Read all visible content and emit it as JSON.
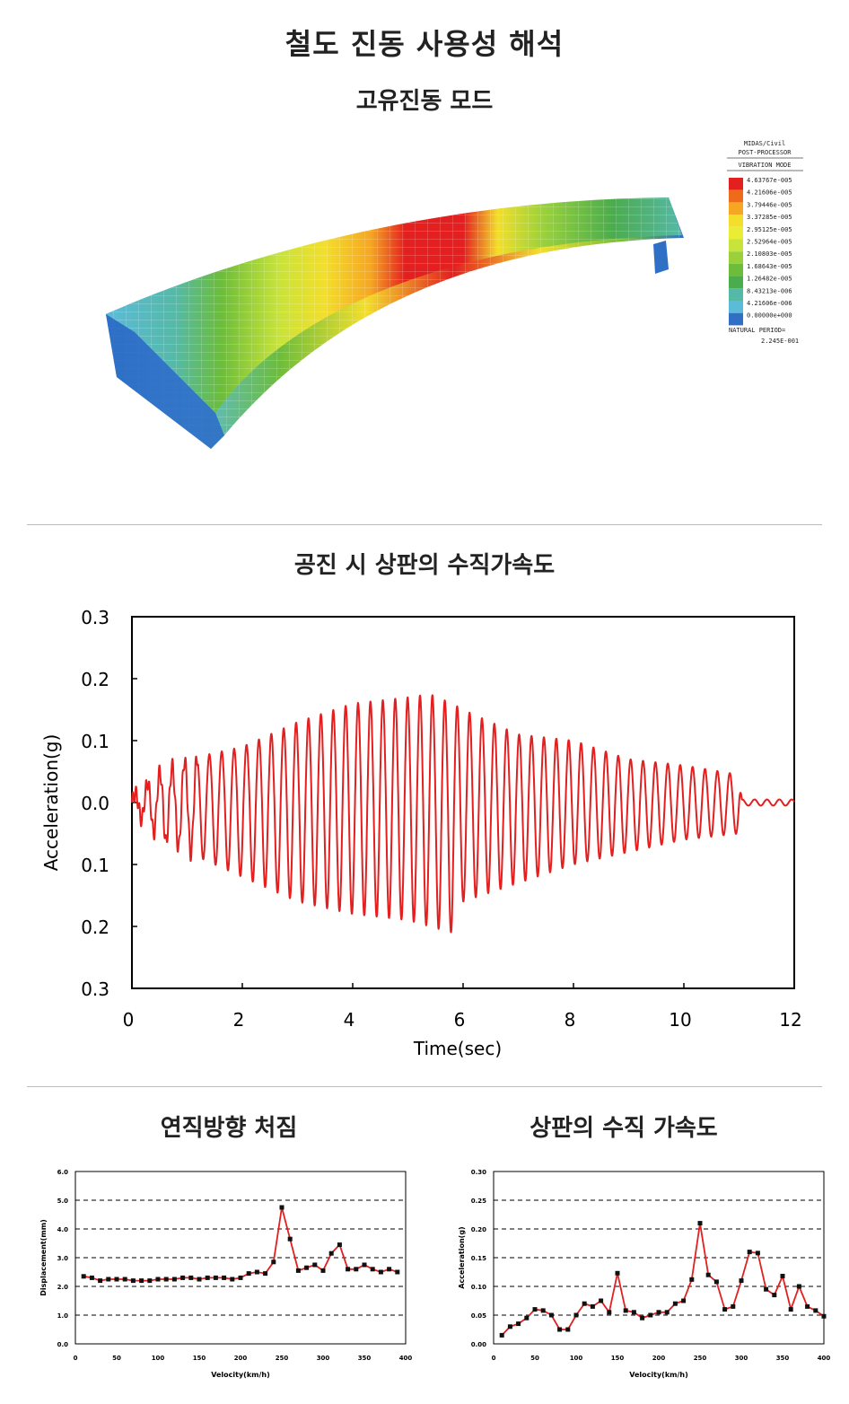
{
  "header": {
    "main_title": "철도 진동 사용성 해석",
    "mode_title": "고유진동 모드",
    "accel_title": "공진 시 상판의 수직가속도",
    "deflection_title": "연직방향 처짐",
    "deck_accel_title": "상판의 수직 가속도"
  },
  "legend": {
    "program": "MIDAS/Civil",
    "processor": "POST-PROCESSOR",
    "mode": "VIBRATION MODE",
    "values": [
      "4.63767e-005",
      "4.21606e-005",
      "3.79446e-005",
      "3.37285e-005",
      "2.95125e-005",
      "2.52964e-005",
      "2.10803e-005",
      "1.68643e-005",
      "1.26482e-005",
      "8.43213e-006",
      "4.21606e-006",
      "0.00000e+000"
    ],
    "colors": [
      "#e31f1f",
      "#ef6a1a",
      "#f5a623",
      "#f3de2c",
      "#e9ee34",
      "#c8e33a",
      "#9ad13b",
      "#6cbd3a",
      "#4aac4d",
      "#55b9a8",
      "#5bbbd9",
      "#2f6fc6"
    ],
    "period_label": "NATURAL PERIOD=",
    "period_value": "2.245E-001"
  },
  "chart_data": [
    {
      "type": "line",
      "title": "공진 시 상판의 수직가속도",
      "xlabel": "Time(sec)",
      "ylabel": "Acceleration(g)",
      "xlim": [
        0,
        12
      ],
      "ylim": [
        -0.3,
        0.3
      ],
      "xticks": [
        "0",
        "2",
        "4",
        "6",
        "8",
        "10",
        "12"
      ],
      "yticks": [
        "0.3",
        "0.2",
        "0.1",
        "0.0",
        "0.1",
        "0.2",
        "0.3"
      ],
      "color": "#e31f1f",
      "envelope": {
        "t": [
          0,
          0.5,
          1,
          2,
          3,
          4,
          5,
          5.4,
          5.8,
          6,
          7,
          8,
          9,
          10,
          11,
          11.05,
          12
        ],
        "amp_upper": [
          0.01,
          0.05,
          0.07,
          0.09,
          0.13,
          0.16,
          0.17,
          0.175,
          0.16,
          0.15,
          0.11,
          0.1,
          0.07,
          0.06,
          0.045,
          0.005,
          0.005
        ],
        "amp_lower": [
          0.01,
          0.06,
          0.08,
          0.12,
          0.16,
          0.18,
          0.19,
          0.2,
          0.21,
          0.16,
          0.13,
          0.1,
          0.08,
          0.06,
          0.05,
          0.005,
          0.005
        ]
      },
      "period_sec": 0.2245
    },
    {
      "type": "line",
      "title": "연직방향 처짐",
      "xlabel": "Velocity(km/h)",
      "ylabel": "Displacement(mm)",
      "xlim": [
        0,
        400
      ],
      "ylim": [
        0,
        6
      ],
      "xticks": [
        "0",
        "50",
        "100",
        "150",
        "200",
        "250",
        "300",
        "350",
        "400"
      ],
      "yticks": [
        "0.0",
        "1.0",
        "2.0",
        "3.0",
        "4.0",
        "5.0",
        "6.0"
      ],
      "x": [
        10,
        20,
        30,
        40,
        50,
        60,
        70,
        80,
        90,
        100,
        110,
        120,
        130,
        140,
        150,
        160,
        170,
        180,
        190,
        200,
        210,
        220,
        230,
        240,
        250,
        260,
        270,
        280,
        290,
        300,
        310,
        320,
        330,
        340,
        350,
        360,
        370,
        380,
        390
      ],
      "values": [
        2.35,
        2.3,
        2.2,
        2.25,
        2.25,
        2.25,
        2.2,
        2.2,
        2.2,
        2.25,
        2.25,
        2.25,
        2.3,
        2.3,
        2.25,
        2.3,
        2.3,
        2.3,
        2.25,
        2.3,
        2.45,
        2.5,
        2.45,
        2.85,
        4.75,
        3.65,
        2.55,
        2.65,
        2.75,
        2.55,
        3.15,
        3.45,
        2.6,
        2.6,
        2.75,
        2.6,
        2.5,
        2.6,
        2.5
      ]
    },
    {
      "type": "line",
      "title": "상판의 수직 가속도",
      "xlabel": "Velocity(km/h)",
      "ylabel": "Acceleration(g)",
      "xlim": [
        0,
        400
      ],
      "ylim": [
        0,
        0.3
      ],
      "xticks": [
        "0",
        "50",
        "100",
        "150",
        "200",
        "250",
        "300",
        "350",
        "400"
      ],
      "yticks": [
        "0.00",
        "0.05",
        "0.10",
        "0.15",
        "0.20",
        "0.25",
        "0.30"
      ],
      "x": [
        10,
        20,
        30,
        40,
        50,
        60,
        70,
        80,
        90,
        100,
        110,
        120,
        130,
        140,
        150,
        160,
        170,
        180,
        190,
        200,
        210,
        220,
        230,
        240,
        250,
        260,
        270,
        280,
        290,
        300,
        310,
        320,
        330,
        340,
        350,
        360,
        370,
        380,
        390,
        400
      ],
      "values": [
        0.015,
        0.03,
        0.035,
        0.045,
        0.06,
        0.058,
        0.05,
        0.025,
        0.025,
        0.05,
        0.07,
        0.065,
        0.075,
        0.055,
        0.123,
        0.058,
        0.055,
        0.045,
        0.05,
        0.055,
        0.055,
        0.07,
        0.075,
        0.112,
        0.21,
        0.12,
        0.108,
        0.06,
        0.065,
        0.11,
        0.16,
        0.158,
        0.095,
        0.085,
        0.118,
        0.06,
        0.1,
        0.065,
        0.058,
        0.048
      ]
    }
  ]
}
